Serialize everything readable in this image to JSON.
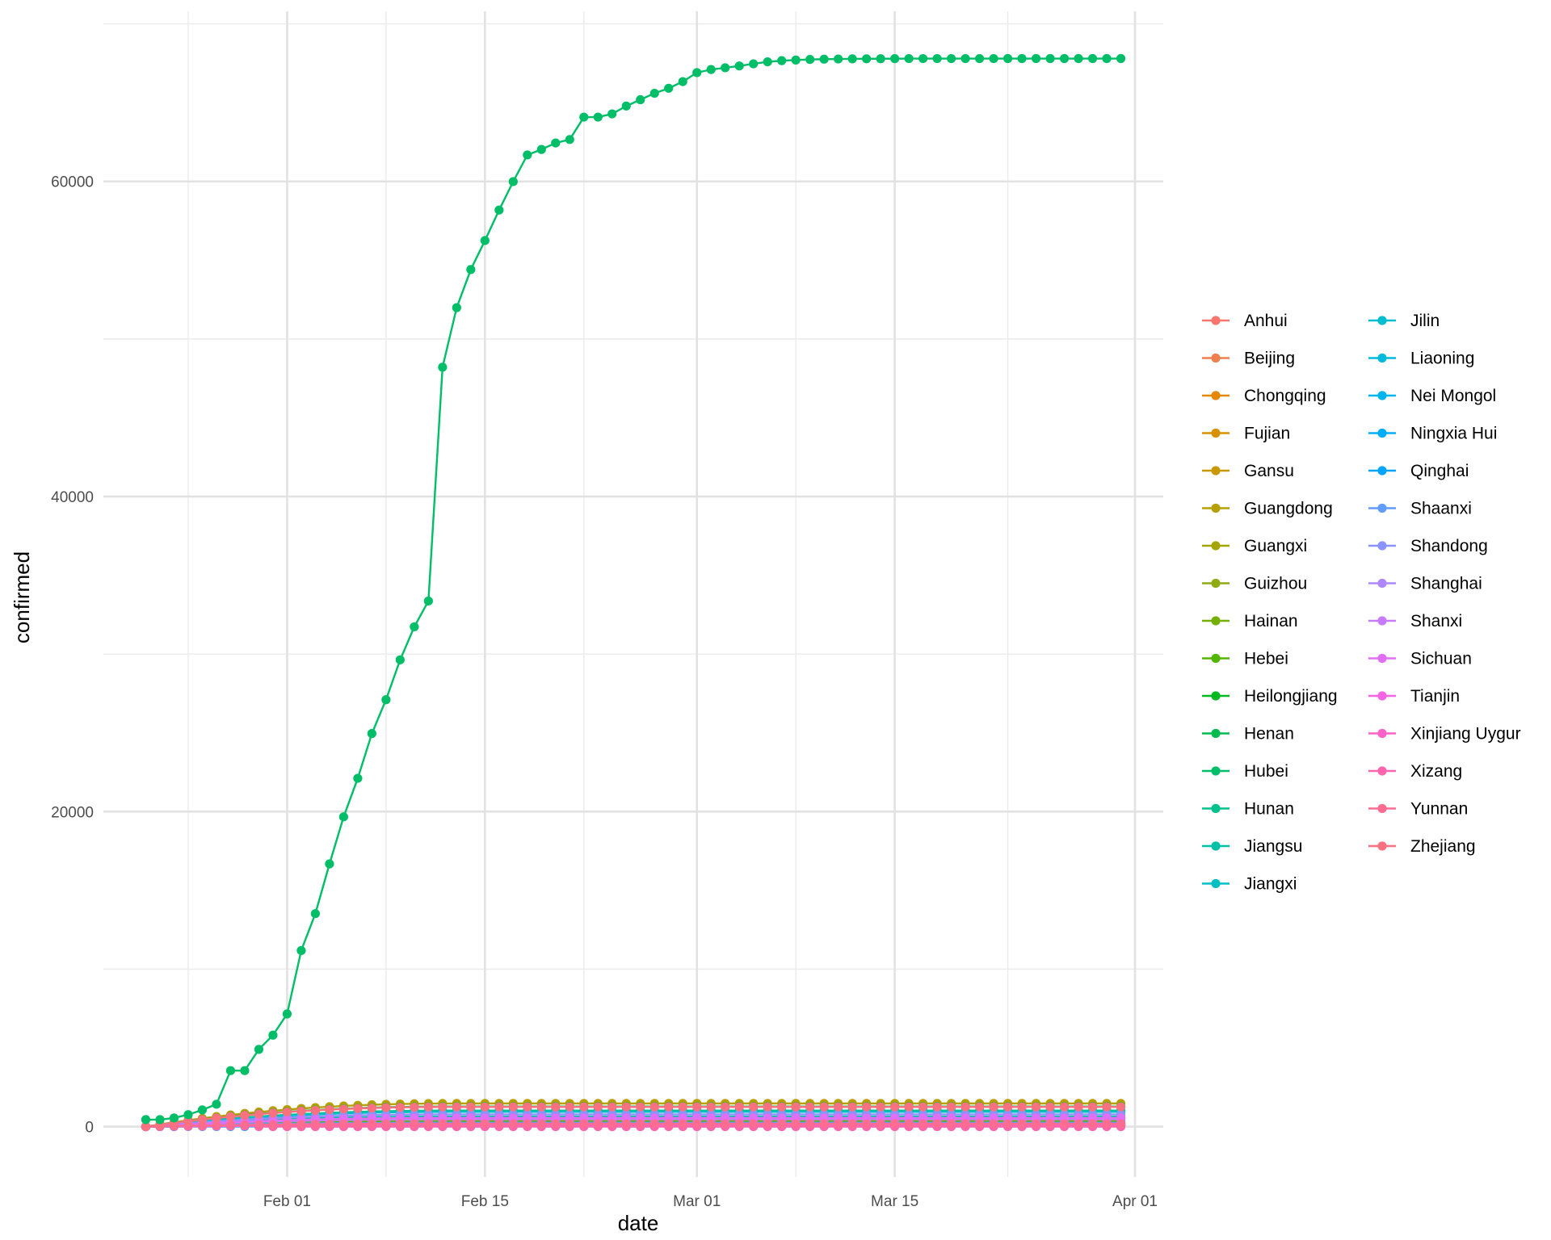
{
  "chart_data": {
    "type": "line",
    "title": "",
    "xlabel": "date",
    "ylabel": "confirmed",
    "x_range": [
      "2020-01-19",
      "2020-04-03"
    ],
    "y_range": [
      -3200,
      70800
    ],
    "x_ticks": [
      {
        "date": "2020-02-01",
        "label": "Feb 01"
      },
      {
        "date": "2020-02-15",
        "label": "Feb 15"
      },
      {
        "date": "2020-03-01",
        "label": "Mar 01"
      },
      {
        "date": "2020-03-15",
        "label": "Mar 15"
      },
      {
        "date": "2020-04-01",
        "label": "Apr 01"
      }
    ],
    "y_ticks": [
      0,
      20000,
      40000,
      60000
    ],
    "grid": true,
    "legend_position": "right",
    "legend_columns": 2,
    "series": [
      {
        "name": "Anhui",
        "color": "#F8766D",
        "start": "2020-01-22",
        "final": 990
      },
      {
        "name": "Beijing",
        "color": "#F07F4F",
        "start": "2020-01-22",
        "final": 580
      },
      {
        "name": "Chongqing",
        "color": "#E58700",
        "start": "2020-01-22",
        "final": 579
      },
      {
        "name": "Fujian",
        "color": "#D89000",
        "start": "2020-01-22",
        "final": 350
      },
      {
        "name": "Gansu",
        "color": "#C99800",
        "start": "2020-01-22",
        "final": 138
      },
      {
        "name": "Guangdong",
        "color": "#B79F00",
        "start": "2020-01-22",
        "final": 1470
      },
      {
        "name": "Guangxi",
        "color": "#A3A500",
        "start": "2020-01-22",
        "final": 254
      },
      {
        "name": "Guizhou",
        "color": "#8EAB12",
        "start": "2020-01-22",
        "final": 147
      },
      {
        "name": "Hainan",
        "color": "#74B000",
        "start": "2020-01-22",
        "final": 168
      },
      {
        "name": "Hebei",
        "color": "#52B500",
        "start": "2020-01-22",
        "final": 320
      },
      {
        "name": "Heilongjiang",
        "color": "#00B81F",
        "start": "2020-01-22",
        "final": 484
      },
      {
        "name": "Henan",
        "color": "#00BB4E",
        "start": "2020-01-22",
        "final": 1276
      },
      {
        "name": "Hubei",
        "color": "#00BE67",
        "x": [
          "2020-01-22",
          "2020-01-23",
          "2020-01-24",
          "2020-01-25",
          "2020-01-26",
          "2020-01-27",
          "2020-01-28",
          "2020-01-29",
          "2020-01-30",
          "2020-01-31",
          "2020-02-01",
          "2020-02-02",
          "2020-02-03",
          "2020-02-04",
          "2020-02-05",
          "2020-02-06",
          "2020-02-07",
          "2020-02-08",
          "2020-02-09",
          "2020-02-10",
          "2020-02-11",
          "2020-02-12",
          "2020-02-13",
          "2020-02-14",
          "2020-02-15",
          "2020-02-16",
          "2020-02-17",
          "2020-02-18",
          "2020-02-19",
          "2020-02-20",
          "2020-02-21",
          "2020-02-22",
          "2020-02-23",
          "2020-02-24",
          "2020-02-25",
          "2020-02-26",
          "2020-02-27",
          "2020-02-28",
          "2020-02-29",
          "2020-03-01",
          "2020-03-02",
          "2020-03-03",
          "2020-03-04",
          "2020-03-05",
          "2020-03-06",
          "2020-03-07",
          "2020-03-08",
          "2020-03-09",
          "2020-03-10",
          "2020-03-11",
          "2020-03-12",
          "2020-03-13",
          "2020-03-14",
          "2020-03-15",
          "2020-03-16",
          "2020-03-17",
          "2020-03-18",
          "2020-03-19",
          "2020-03-20",
          "2020-03-21",
          "2020-03-22",
          "2020-03-23",
          "2020-03-24",
          "2020-03-25",
          "2020-03-26",
          "2020-03-27",
          "2020-03-28",
          "2020-03-29",
          "2020-03-30",
          "2020-03-31"
        ],
        "y": [
          444,
          444,
          549,
          761,
          1058,
          1423,
          3554,
          3554,
          4903,
          5806,
          7153,
          11177,
          13522,
          16678,
          19665,
          22112,
          24953,
          27100,
          29631,
          31728,
          33366,
          48206,
          51986,
          54406,
          56249,
          58182,
          59989,
          61682,
          62031,
          62442,
          62662,
          64084,
          64084,
          64287,
          64786,
          65187,
          65596,
          65914,
          66337,
          66907,
          67103,
          67217,
          67332,
          67466,
          67592,
          67666,
          67707,
          67743,
          67760,
          67773,
          67781,
          67786,
          67790,
          67794,
          67798,
          67799,
          67800,
          67800,
          67800,
          67800,
          67800,
          67801,
          67801,
          67801,
          67801,
          67801,
          67801,
          67801,
          67801,
          67801
        ]
      },
      {
        "name": "Hunan",
        "color": "#00C08B",
        "start": "2020-01-22",
        "final": 1018
      },
      {
        "name": "Jiangsu",
        "color": "#00C1A7",
        "start": "2020-01-22",
        "final": 640
      },
      {
        "name": "Jiangxi",
        "color": "#00BFC4",
        "start": "2020-01-22",
        "final": 937
      },
      {
        "name": "Jilin",
        "color": "#00BDD0",
        "start": "2020-01-22",
        "final": 98
      },
      {
        "name": "Liaoning",
        "color": "#00BADE",
        "start": "2020-01-22",
        "final": 127
      },
      {
        "name": "Nei Mongol",
        "color": "#00B5EE",
        "start": "2020-01-22",
        "final": 107
      },
      {
        "name": "Ningxia Hui",
        "color": "#00ADFA",
        "start": "2020-01-22",
        "final": 75
      },
      {
        "name": "Qinghai",
        "color": "#00A5FF",
        "start": "2020-01-22",
        "final": 18
      },
      {
        "name": "Shaanxi",
        "color": "#619CFF",
        "start": "2020-01-22",
        "final": 250
      },
      {
        "name": "Shandong",
        "color": "#8B93FF",
        "start": "2020-01-22",
        "final": 777
      },
      {
        "name": "Shanghai",
        "color": "#AE87FF",
        "start": "2020-01-22",
        "final": 470
      },
      {
        "name": "Shanxi",
        "color": "#C77CFF",
        "start": "2020-01-22",
        "final": 137
      },
      {
        "name": "Sichuan",
        "color": "#E36EF6",
        "start": "2020-01-22",
        "final": 549
      },
      {
        "name": "Tianjin",
        "color": "#F564E3",
        "start": "2020-01-22",
        "final": 174
      },
      {
        "name": "Xinjiang Uygur",
        "color": "#FF61C9",
        "start": "2020-01-22",
        "final": 76
      },
      {
        "name": "Xizang",
        "color": "#FF65AC",
        "start": "2020-01-30",
        "final": 1
      },
      {
        "name": "Yunnan",
        "color": "#FF6C91",
        "start": "2020-01-22",
        "final": 180
      },
      {
        "name": "Zhejiang",
        "color": "#FC717F",
        "start": "2020-01-22",
        "final": 1250
      }
    ]
  }
}
